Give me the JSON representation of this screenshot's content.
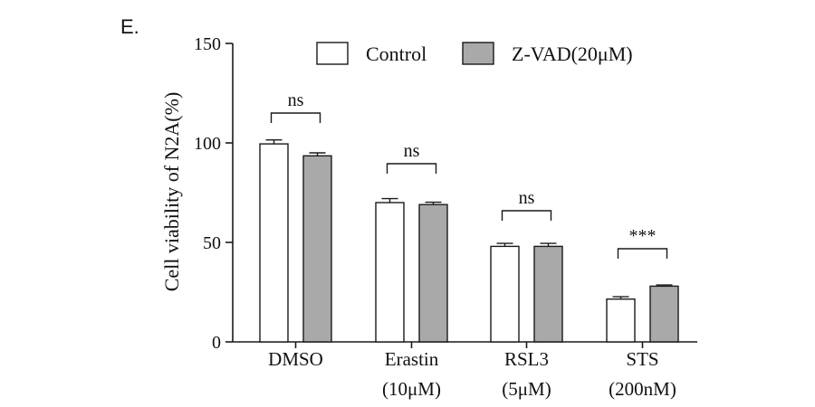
{
  "panel_label": "E.",
  "chart_data": {
    "type": "bar",
    "ylabel": "Cell viability of N2A(%)",
    "xlabel": "",
    "ylim": [
      0,
      150
    ],
    "yticks": [
      0,
      50,
      100,
      150
    ],
    "categories": [
      {
        "line1": "DMSO",
        "line2": ""
      },
      {
        "line1": "Erastin",
        "line2": "(10μM)"
      },
      {
        "line1": "RSL3",
        "line2": "(5μM)"
      },
      {
        "line1": "STS",
        "line2": "(200nM)"
      }
    ],
    "series": [
      {
        "name": "Control",
        "color": "#ffffff",
        "values": [
          99.5,
          70,
          48,
          21.5
        ],
        "errors": [
          2,
          2,
          1.5,
          1.2
        ]
      },
      {
        "name": "Z-VAD(20μM)",
        "color": "#a9a9a9",
        "values": [
          93.5,
          69,
          48,
          28
        ],
        "errors": [
          1.5,
          1.2,
          1.5,
          0.6
        ]
      }
    ],
    "significance": [
      "ns",
      "ns",
      "ns",
      "***"
    ],
    "legend_position": "top",
    "grid": false
  }
}
